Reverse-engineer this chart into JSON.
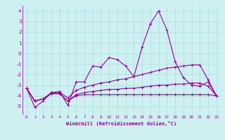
{
  "x": [
    0,
    1,
    2,
    3,
    4,
    5,
    6,
    7,
    8,
    9,
    10,
    11,
    12,
    13,
    14,
    15,
    16,
    17,
    18,
    19,
    20,
    21,
    22,
    23
  ],
  "line1": [
    -3.3,
    -5.1,
    -4.5,
    -3.7,
    -3.6,
    -4.9,
    -2.7,
    -2.7,
    -1.2,
    -1.3,
    -0.4,
    -0.6,
    -1.2,
    -2.2,
    0.6,
    2.8,
    4.0,
    2.2,
    -0.8,
    -2.3,
    -3.0,
    -3.1,
    -2.7,
    -4.0
  ],
  "line2": [
    -3.3,
    -4.5,
    -4.3,
    -3.7,
    -3.7,
    -4.2,
    -3.5,
    -3.2,
    -3.0,
    -2.8,
    -2.7,
    -2.5,
    -2.4,
    -2.2,
    -2.0,
    -1.8,
    -1.6,
    -1.4,
    -1.3,
    -1.2,
    -1.1,
    -1.1,
    -2.5,
    -4.0
  ],
  "line3": [
    -3.3,
    -4.5,
    -4.3,
    -3.8,
    -3.8,
    -4.5,
    -3.9,
    -3.7,
    -3.6,
    -3.5,
    -3.4,
    -3.4,
    -3.3,
    -3.3,
    -3.2,
    -3.1,
    -3.0,
    -3.0,
    -2.9,
    -2.9,
    -2.8,
    -2.8,
    -3.1,
    -4.0
  ],
  "line4": [
    -3.3,
    -4.5,
    -4.3,
    -3.8,
    -3.8,
    -4.5,
    -4.0,
    -3.9,
    -3.9,
    -3.9,
    -3.9,
    -3.9,
    -3.9,
    -3.9,
    -3.9,
    -3.9,
    -3.9,
    -3.9,
    -3.9,
    -3.9,
    -3.9,
    -3.9,
    -3.9,
    -4.0
  ],
  "bg_color": "#cff0f0",
  "grid_color": "#aadddd",
  "line_color": "#990099",
  "ylim": [
    -5.8,
    4.5
  ],
  "yticks": [
    -5,
    -4,
    -3,
    -2,
    -1,
    0,
    1,
    2,
    3,
    4
  ],
  "xlim": [
    -0.5,
    23.5
  ],
  "xlabel": "Windchill (Refroidissement éolien,°C)",
  "tick_fontsize": 4.2,
  "label_fontsize": 5.0
}
